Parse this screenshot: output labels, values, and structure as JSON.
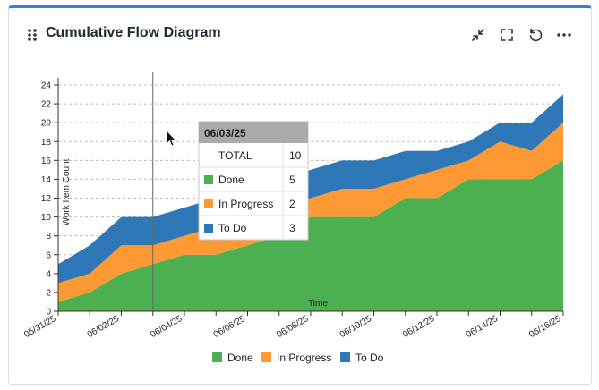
{
  "widget": {
    "title": "Cumulative Flow Diagram",
    "actions": [
      "collapse-icon",
      "fullscreen-icon",
      "refresh-icon",
      "more-icon"
    ]
  },
  "chart_data": {
    "type": "area",
    "stacked": true,
    "title": "Cumulative Flow Diagram",
    "xlabel": "Time",
    "ylabel": "Work Item Count",
    "ylim": [
      0,
      24
    ],
    "yticks": [
      0,
      2,
      4,
      6,
      8,
      10,
      12,
      14,
      16,
      18,
      20,
      22,
      24
    ],
    "x": [
      "05/31/25",
      "06/01/25",
      "06/02/25",
      "06/03/25",
      "06/04/25",
      "06/05/25",
      "06/06/25",
      "06/07/25",
      "06/08/25",
      "06/09/25",
      "06/10/25",
      "06/11/25",
      "06/12/25",
      "06/13/25",
      "06/14/25",
      "06/15/25",
      "06/16/25"
    ],
    "xtick_labels": [
      "05/31/25",
      "06/02/25",
      "06/04/25",
      "06/06/25",
      "06/08/25",
      "06/10/25",
      "06/12/25",
      "06/14/25",
      "06/16/25"
    ],
    "series": [
      {
        "name": "Done",
        "color": "#4caf50",
        "values": [
          1,
          2,
          4,
          5,
          6,
          6,
          7,
          8,
          10,
          10,
          10,
          12,
          12,
          14,
          14,
          14,
          16
        ]
      },
      {
        "name": "In Progress",
        "color": "#ff9933",
        "values": [
          2,
          2,
          3,
          2,
          2,
          3,
          3,
          3,
          2,
          3,
          3,
          2,
          3,
          2,
          4,
          3,
          4
        ]
      },
      {
        "name": "To Do",
        "color": "#2e78b7",
        "values": [
          2,
          3,
          3,
          3,
          3,
          3,
          3,
          3,
          3,
          3,
          3,
          3,
          2,
          2,
          2,
          3,
          3
        ]
      }
    ],
    "legend": [
      "Done",
      "In Progress",
      "To Do"
    ],
    "legend_position": "bottom",
    "grid": true,
    "hover_date": "06/03/25",
    "tooltip": {
      "date": "06/03/25",
      "rows": [
        {
          "label": "TOTAL",
          "value": "10"
        },
        {
          "label": "Done",
          "value": "5",
          "color": "#4caf50"
        },
        {
          "label": "In Progress",
          "value": "2",
          "color": "#ff9933"
        },
        {
          "label": "To Do",
          "value": "3",
          "color": "#2e78b7"
        }
      ]
    }
  }
}
